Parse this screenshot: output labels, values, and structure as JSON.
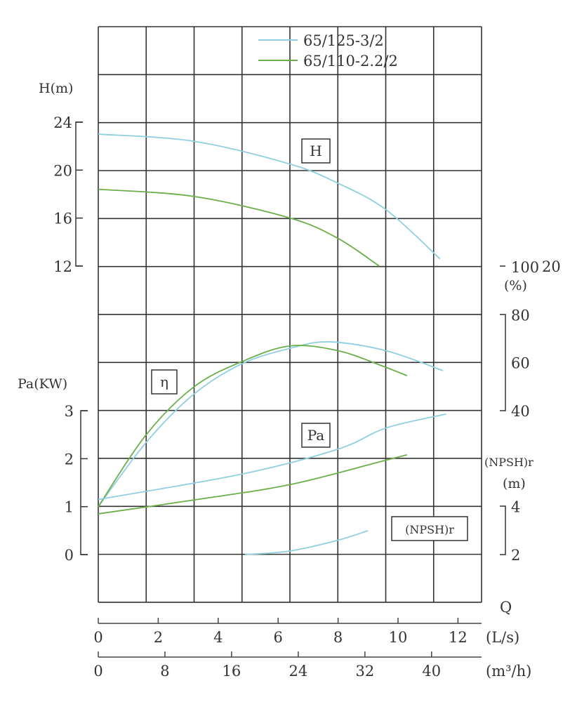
{
  "chart_data": {
    "type": "line",
    "grid": true,
    "legend_placement": "top-center",
    "legend": [
      {
        "name": "65/125-3/2",
        "color": "#8fcfe0"
      },
      {
        "name": "65/110-2.2/2",
        "color": "#6aaf4a"
      }
    ],
    "x_axes": [
      {
        "label": "(L/s)",
        "ticks": [
          "0",
          "2",
          "4",
          "6",
          "8",
          "10",
          "12"
        ],
        "range": [
          0,
          12.8
        ]
      },
      {
        "label": "(m³/h)",
        "ticks": [
          "0",
          "8",
          "16",
          "24",
          "32",
          "40"
        ],
        "range": [
          0,
          46
        ]
      }
    ],
    "q_label": "Q",
    "y_axes": {
      "H": {
        "label": "H(m)",
        "ticks": [
          "12",
          "16",
          "20",
          "24"
        ],
        "range": [
          12,
          24
        ]
      },
      "eta": {
        "label": "(%)",
        "ticks": [
          "40",
          "60",
          "80",
          "100"
        ],
        "stray_label": "20",
        "range": [
          40,
          100
        ]
      },
      "Pa": {
        "label": "Pa(KW)",
        "ticks": [
          "0",
          "1",
          "2",
          "3"
        ],
        "range": [
          0,
          3
        ]
      },
      "NPSH": {
        "label": "(NPSH)r",
        "unit": "(m)",
        "ticks": [
          "2",
          "4"
        ],
        "range": [
          2,
          4
        ]
      }
    },
    "curve_labels": {
      "H": "H",
      "eta": "η",
      "Pa": "Pa",
      "NPSH": "(NPSH)r"
    },
    "series": [
      {
        "name": "65/125-3/2",
        "quantity": "H",
        "x": [
          0,
          3.2,
          6.4,
          8,
          9.6,
          11.4
        ],
        "y": [
          23,
          22.4,
          20.5,
          18.9,
          16.7,
          12.6
        ]
      },
      {
        "name": "65/110-2.2/2",
        "quantity": "H",
        "x": [
          0,
          3.2,
          6.4,
          8,
          9.37
        ],
        "y": [
          18.4,
          17.8,
          16,
          14.3,
          12
        ]
      },
      {
        "name": "65/125-3/2",
        "quantity": "eta",
        "x": [
          0,
          1.6,
          3.2,
          4.8,
          6.4,
          7.7,
          9.6,
          11.5
        ],
        "y": [
          0,
          26.8,
          47,
          59.6,
          66,
          68.7,
          65,
          56.7
        ]
      },
      {
        "name": "65/110-2.2/2",
        "quantity": "eta",
        "x": [
          0,
          1.6,
          3.2,
          4.8,
          6.4,
          8,
          9.4,
          10.3
        ],
        "y": [
          0,
          30,
          50,
          60.5,
          67,
          65,
          59,
          54.6
        ]
      },
      {
        "name": "65/125-3/2",
        "quantity": "Pa",
        "x": [
          0,
          4.8,
          8,
          9.6,
          11.6
        ],
        "y": [
          1.15,
          1.68,
          2.2,
          2.64,
          2.93
        ]
      },
      {
        "name": "65/110-2.2/2",
        "quantity": "Pa",
        "x": [
          0,
          3.2,
          6.4,
          9.6,
          10.3
        ],
        "y": [
          0.85,
          1.14,
          1.46,
          1.97,
          2.08
        ]
      },
      {
        "name": "65/125-3/2",
        "quantity": "NPSH",
        "x": [
          4.9,
          6.4,
          8,
          9.0
        ],
        "y": [
          2.0,
          2.15,
          2.6,
          3.0
        ]
      }
    ]
  }
}
